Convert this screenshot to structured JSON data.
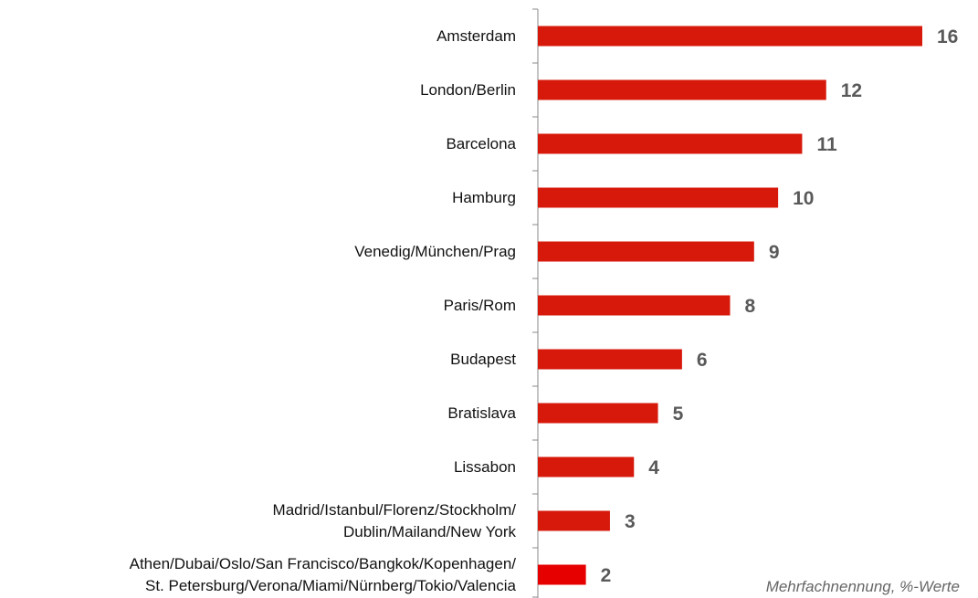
{
  "chart_data": {
    "type": "hbar",
    "categories": [
      "Amsterdam",
      "London/Berlin",
      "Barcelona",
      "Hamburg",
      "Venedig/München/Prag",
      "Paris/Rom",
      "Budapest",
      "Bratislava",
      "Lissabon",
      "Madrid/Istanbul/Florenz/Stockholm/\nDublin/Mailand/New York",
      "Athen/Dubai/Oslo/San Francisco/Bangkok/Kopenhagen/\nSt. Petersburg/Verona/Miami/Nürnberg/Tokio/Valencia"
    ],
    "values": [
      16,
      12,
      11,
      10,
      9,
      8,
      6,
      5,
      4,
      3,
      2
    ],
    "colors": [
      "#d7190b",
      "#d7190b",
      "#d7190b",
      "#d7190b",
      "#d7190b",
      "#d7190b",
      "#d7190b",
      "#d7190b",
      "#d7190b",
      "#d7190b",
      "#e60000"
    ],
    "note": "Mehrfachnennung, %-Werte"
  }
}
